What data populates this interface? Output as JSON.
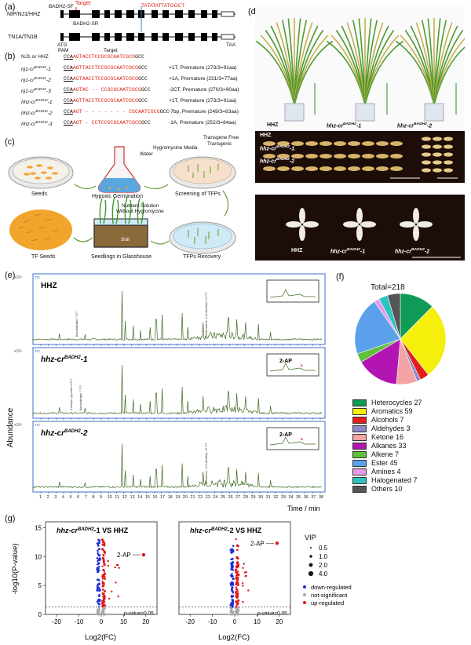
{
  "panels": {
    "a": "(a)",
    "b": "(b)",
    "c": "(c)",
    "d": "(d)",
    "e": "(e)",
    "f": "(f)",
    "g": "(g)"
  },
  "panel_a": {
    "primer_sf": "BADH2-SF",
    "target": "Target",
    "primer_sr": "BADH2-SR",
    "motif": "TATATATTATGGCT",
    "gene1": "NIP/NJ1/HHZ",
    "gene2": "TN1A/TN1B",
    "atg": "ATG",
    "taa": "TAA",
    "pam": "PAM",
    "target_label": "Target"
  },
  "panel_b": {
    "rows": [
      {
        "name": "NJ1 or HHZ",
        "pre": "CCA",
        "seq": "AGTACCTCCGCGCAATCGCG",
        "post": "GCC",
        "note": ""
      },
      {
        "name": "nj1-cr",
        "sup": "BADH2",
        "suffix": "-1",
        "pre": "CCA",
        "seq": "AGTTACCTCCGCGCAATCGCG",
        "post": "GCC",
        "note": "+1T, Premature (273/3=91aa)"
      },
      {
        "name": "nj1-cr",
        "sup": "BADH2",
        "suffix": "-2",
        "pre": "CCA",
        "seq": "AGTAACCTCCGCGCAATCGCG",
        "post": "GCC",
        "note": "+1A, Premature (231/3=77aa)"
      },
      {
        "name": "nj1-cr",
        "sup": "BADH2",
        "suffix": "-3",
        "pre": "CCA",
        "seq": "AGTAC -- CCGCGCAATCGCG",
        "post": "GCC",
        "note": "-2CT, Premature (270/3=90aa)"
      },
      {
        "name": "hhz-cr",
        "sup": "BADH2",
        "suffix": "-1",
        "pre": "CCA",
        "seq": "AGTTACCTCCGCGCAATCGCG",
        "post": "GCC",
        "note": "+1T, Premature (273/3=91aa)"
      },
      {
        "name": "hhz-cr",
        "sup": "BADH2",
        "suffix": "-2",
        "pre": "CCA",
        "seq": "AGT - - - - - - -  CGCAATCGCG",
        "post": "GCC",
        "note": "-7bp, Premature (249/3=83aa)"
      },
      {
        "name": "hhz-cr",
        "sup": "BADH2",
        "suffix": "-3",
        "pre": "CCA",
        "seq": "AGT -  CCTCCGCGCAATCGCG",
        "post": "GCC",
        "note": "-1A, Premature (252/3=84aa)"
      }
    ]
  },
  "panel_c": {
    "water": "Water",
    "hygro_media": "Hygromycine Media",
    "transgene_free": "Transgene Free",
    "transgenic": "Transgenic",
    "seeds": "Seeds",
    "hypoxic": "Hypoxic Germination",
    "screening": "Screening of TFPs",
    "nutrient1": "Nutrient Solution",
    "nutrient2": "Without Hygromycine",
    "soil": "Soil",
    "tf_seeds": "TF Seeds",
    "seedlings": "Seedlings in Glasshouse",
    "recovery": "TFPs Recovery"
  },
  "panel_d": {
    "plant_labels": [
      {
        "name": "HHZ",
        "sup": "",
        "suffix": ""
      },
      {
        "name": "hhz-cr",
        "sup": "BADH2",
        "suffix": "-1"
      },
      {
        "name": "hhz-cr",
        "sup": "BADH2",
        "suffix": "-2"
      }
    ],
    "grain_rows": [
      {
        "name": "HHZ",
        "sup": "",
        "suffix": ""
      },
      {
        "name": "hhz-cr",
        "sup": "BADH2",
        "suffix": "-1"
      },
      {
        "name": "hhz-cr",
        "sup": "BADH2",
        "suffix": "-2"
      }
    ],
    "kernel_labels": [
      {
        "name": "HHZ",
        "sup": "",
        "suffix": ""
      },
      {
        "name": "hhz-cr",
        "sup": "BADH2",
        "suffix": "-1"
      },
      {
        "name": "hhz-cr",
        "sup": "BADH2",
        "suffix": "-2"
      }
    ]
  },
  "panel_e": {
    "ylabel": "Abundance",
    "xlabel": "Time / min",
    "yscale": "x10⁶",
    "tic": "TIC",
    "ticks": [
      "1",
      "2",
      "3",
      "4",
      "5",
      "6",
      "7",
      "8",
      "9",
      "10",
      "11",
      "12",
      "13",
      "14",
      "15",
      "16",
      "17",
      "18",
      "19",
      "20",
      "21",
      "22",
      "23",
      "24",
      "25",
      "26",
      "27",
      "28",
      "29",
      "30",
      "31",
      "32",
      "33",
      "34",
      "35",
      "36",
      "37",
      "38"
    ],
    "traces": [
      {
        "title": "HHZ",
        "sup": "",
        "suffix": "",
        "inset": ""
      },
      {
        "title": "hhz-cr",
        "sup": "BADH2",
        "suffix": "-1",
        "inset": "2-AP"
      },
      {
        "title": "hhz-cr",
        "sup": "BADH2",
        "suffix": "-2",
        "inset": "2-AP"
      }
    ],
    "peak_notes": [
      "Benzaldehyde 7.2??",
      "Dodecadiene, 4,10-dimethyl- 10.???",
      "2-Acetyl-1-pyrroline 6.2??",
      "Benzaldehyde 7.???",
      "Nonadiene, 4,10-dimethyl- 10.???"
    ]
  },
  "panel_f": {
    "total": "Total=218",
    "legend": [
      {
        "label": "Heterocycles 27",
        "color": "#0f9a55"
      },
      {
        "label": "Aromatics 59",
        "color": "#f6ef0c"
      },
      {
        "label": "Alcohols 7",
        "color": "#e21d1d"
      },
      {
        "label": "Aldehydes 3",
        "color": "#8c89c8"
      },
      {
        "label": "Ketone 16",
        "color": "#f2a3a3"
      },
      {
        "label": "Alkanes 33",
        "color": "#b315b3"
      },
      {
        "label": "Alkene 7",
        "color": "#61c03b"
      },
      {
        "label": "Ester 45",
        "color": "#5aa0ea"
      },
      {
        "label": "Amines 4",
        "color": "#e89ae8"
      },
      {
        "label": "Halogenated 7",
        "color": "#2ec3c3"
      },
      {
        "label": "Others 10",
        "color": "#555555"
      }
    ]
  },
  "chart_data": {
    "type": "pie",
    "title": "Total=218",
    "labels": [
      "Heterocycles",
      "Aromatics",
      "Alcohols",
      "Aldehydes",
      "Ketone",
      "Alkanes",
      "Alkene",
      "Ester",
      "Amines",
      "Halogenated",
      "Others"
    ],
    "values": [
      27,
      59,
      7,
      3,
      16,
      33,
      7,
      45,
      4,
      7,
      10
    ]
  },
  "panel_g": {
    "ylabel": "-log10(P-value)",
    "xlabel": "Log2(FC)",
    "plots": [
      {
        "title_pre": "hhz-cr",
        "sup": "BADH2",
        "title_post": "-1 VS HHZ",
        "annot": "2-AP",
        "pline": "p-value=0.05"
      },
      {
        "title_pre": "hhz-cr",
        "sup": "BADH2",
        "title_post": "-2 VS HHZ",
        "annot": "2-AP",
        "pline": "p-value=0.05"
      }
    ],
    "xticks": [
      "-20",
      "-10",
      "0",
      "10",
      "20"
    ],
    "yticks": [
      "0",
      "5",
      "10",
      "15"
    ],
    "vip_title": "VIP",
    "vip": [
      "0.5",
      "1.0",
      "2.0",
      "4.0"
    ],
    "legend": [
      {
        "label": "down-regulated",
        "color": "#1f2fd6"
      },
      {
        "label": "not-significant",
        "color": "#a9a9a9"
      },
      {
        "label": "up-regulated",
        "color": "#e01919"
      }
    ]
  }
}
